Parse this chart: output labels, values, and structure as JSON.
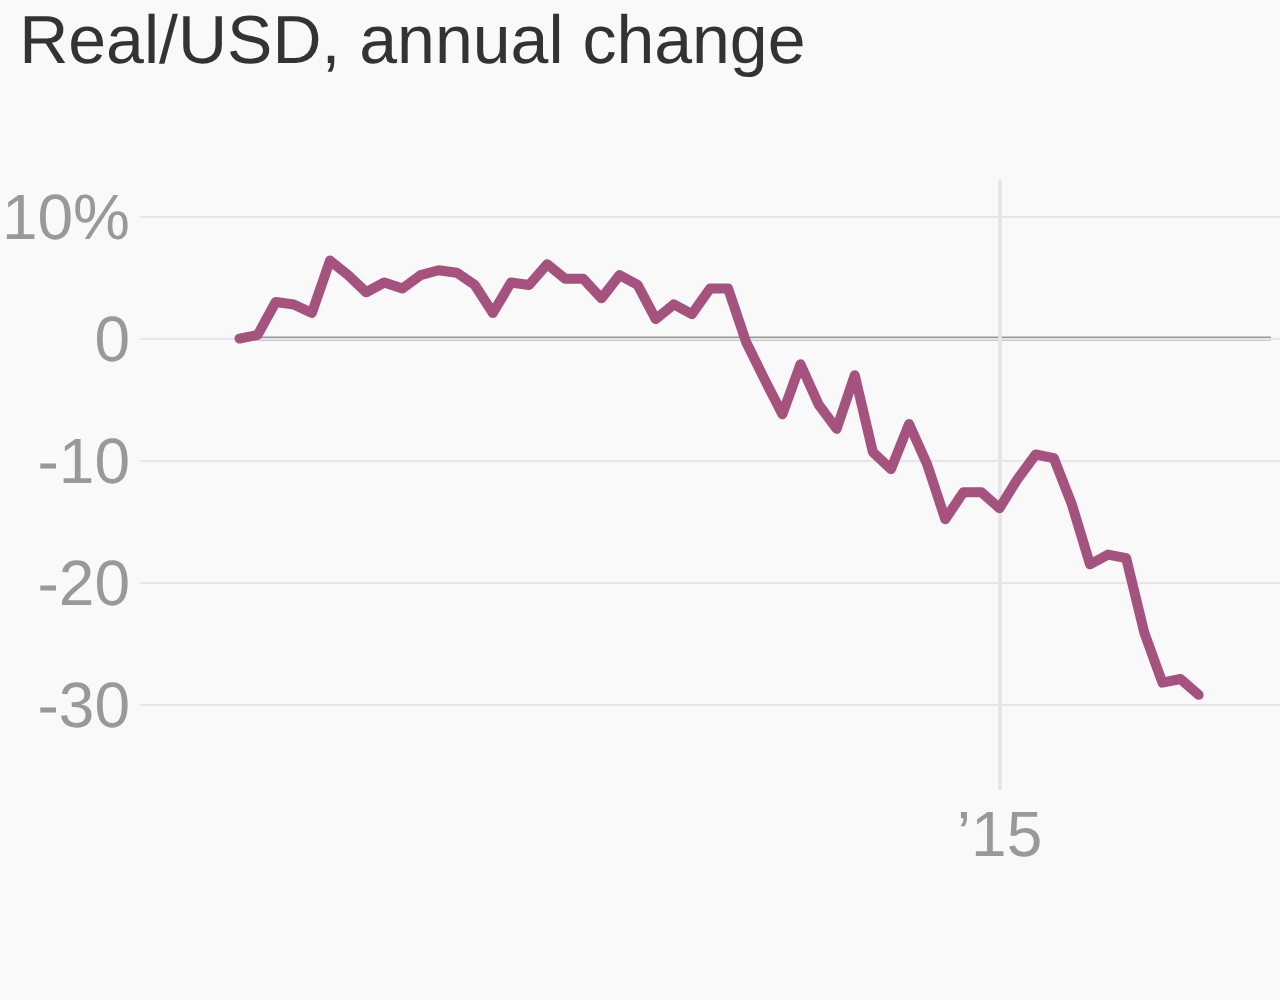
{
  "chart_data": {
    "type": "line",
    "title": "Real/USD, annual change",
    "categories": [
      null,
      null,
      null,
      null,
      null,
      null,
      null,
      null,
      null,
      null,
      null,
      null,
      null,
      null,
      null,
      null,
      null,
      null,
      null,
      null,
      null,
      null,
      null,
      null,
      null,
      null,
      null,
      null,
      null,
      null,
      null,
      null,
      null,
      null,
      null,
      null,
      null,
      null,
      null,
      null,
      null,
      null,
      "’15",
      null,
      null,
      null,
      null,
      null,
      null,
      null,
      null,
      null,
      null,
      null
    ],
    "series": [
      {
        "color": "#a5527f",
        "values": [
          0,
          0.3,
          3,
          2.8,
          2.1,
          6.4,
          5.2,
          3.8,
          4.6,
          4.1,
          5.2,
          5.6,
          5.4,
          4.4,
          2.1,
          4.6,
          4.4,
          6.1,
          4.9,
          4.9,
          3.3,
          5.2,
          4.4,
          1.6,
          2.8,
          2.0,
          4.1,
          4.1,
          -0.3,
          -3.3,
          -6.2,
          -2.1,
          -5.4,
          -7.4,
          -3.0,
          -9.3,
          -10.7,
          -7.0,
          -10.3,
          -14.8,
          -12.6,
          -12.6,
          -13.9,
          -11.5,
          -9.5,
          -9.8,
          -13.6,
          -18.5,
          -17.7,
          -18.0,
          -24.1,
          -28.2,
          -27.9,
          -29.2
        ]
      }
    ],
    "ylim": [
      -37,
      13
    ],
    "yticks": [
      {
        "value": 10,
        "label": "10%"
      },
      0,
      -10,
      -20,
      -30
    ],
    "ref_lines": [
      {
        "axis": "y",
        "value": 0,
        "color": "#999999"
      }
    ],
    "grid": true,
    "marker": "none",
    "line_style": "solid"
  }
}
